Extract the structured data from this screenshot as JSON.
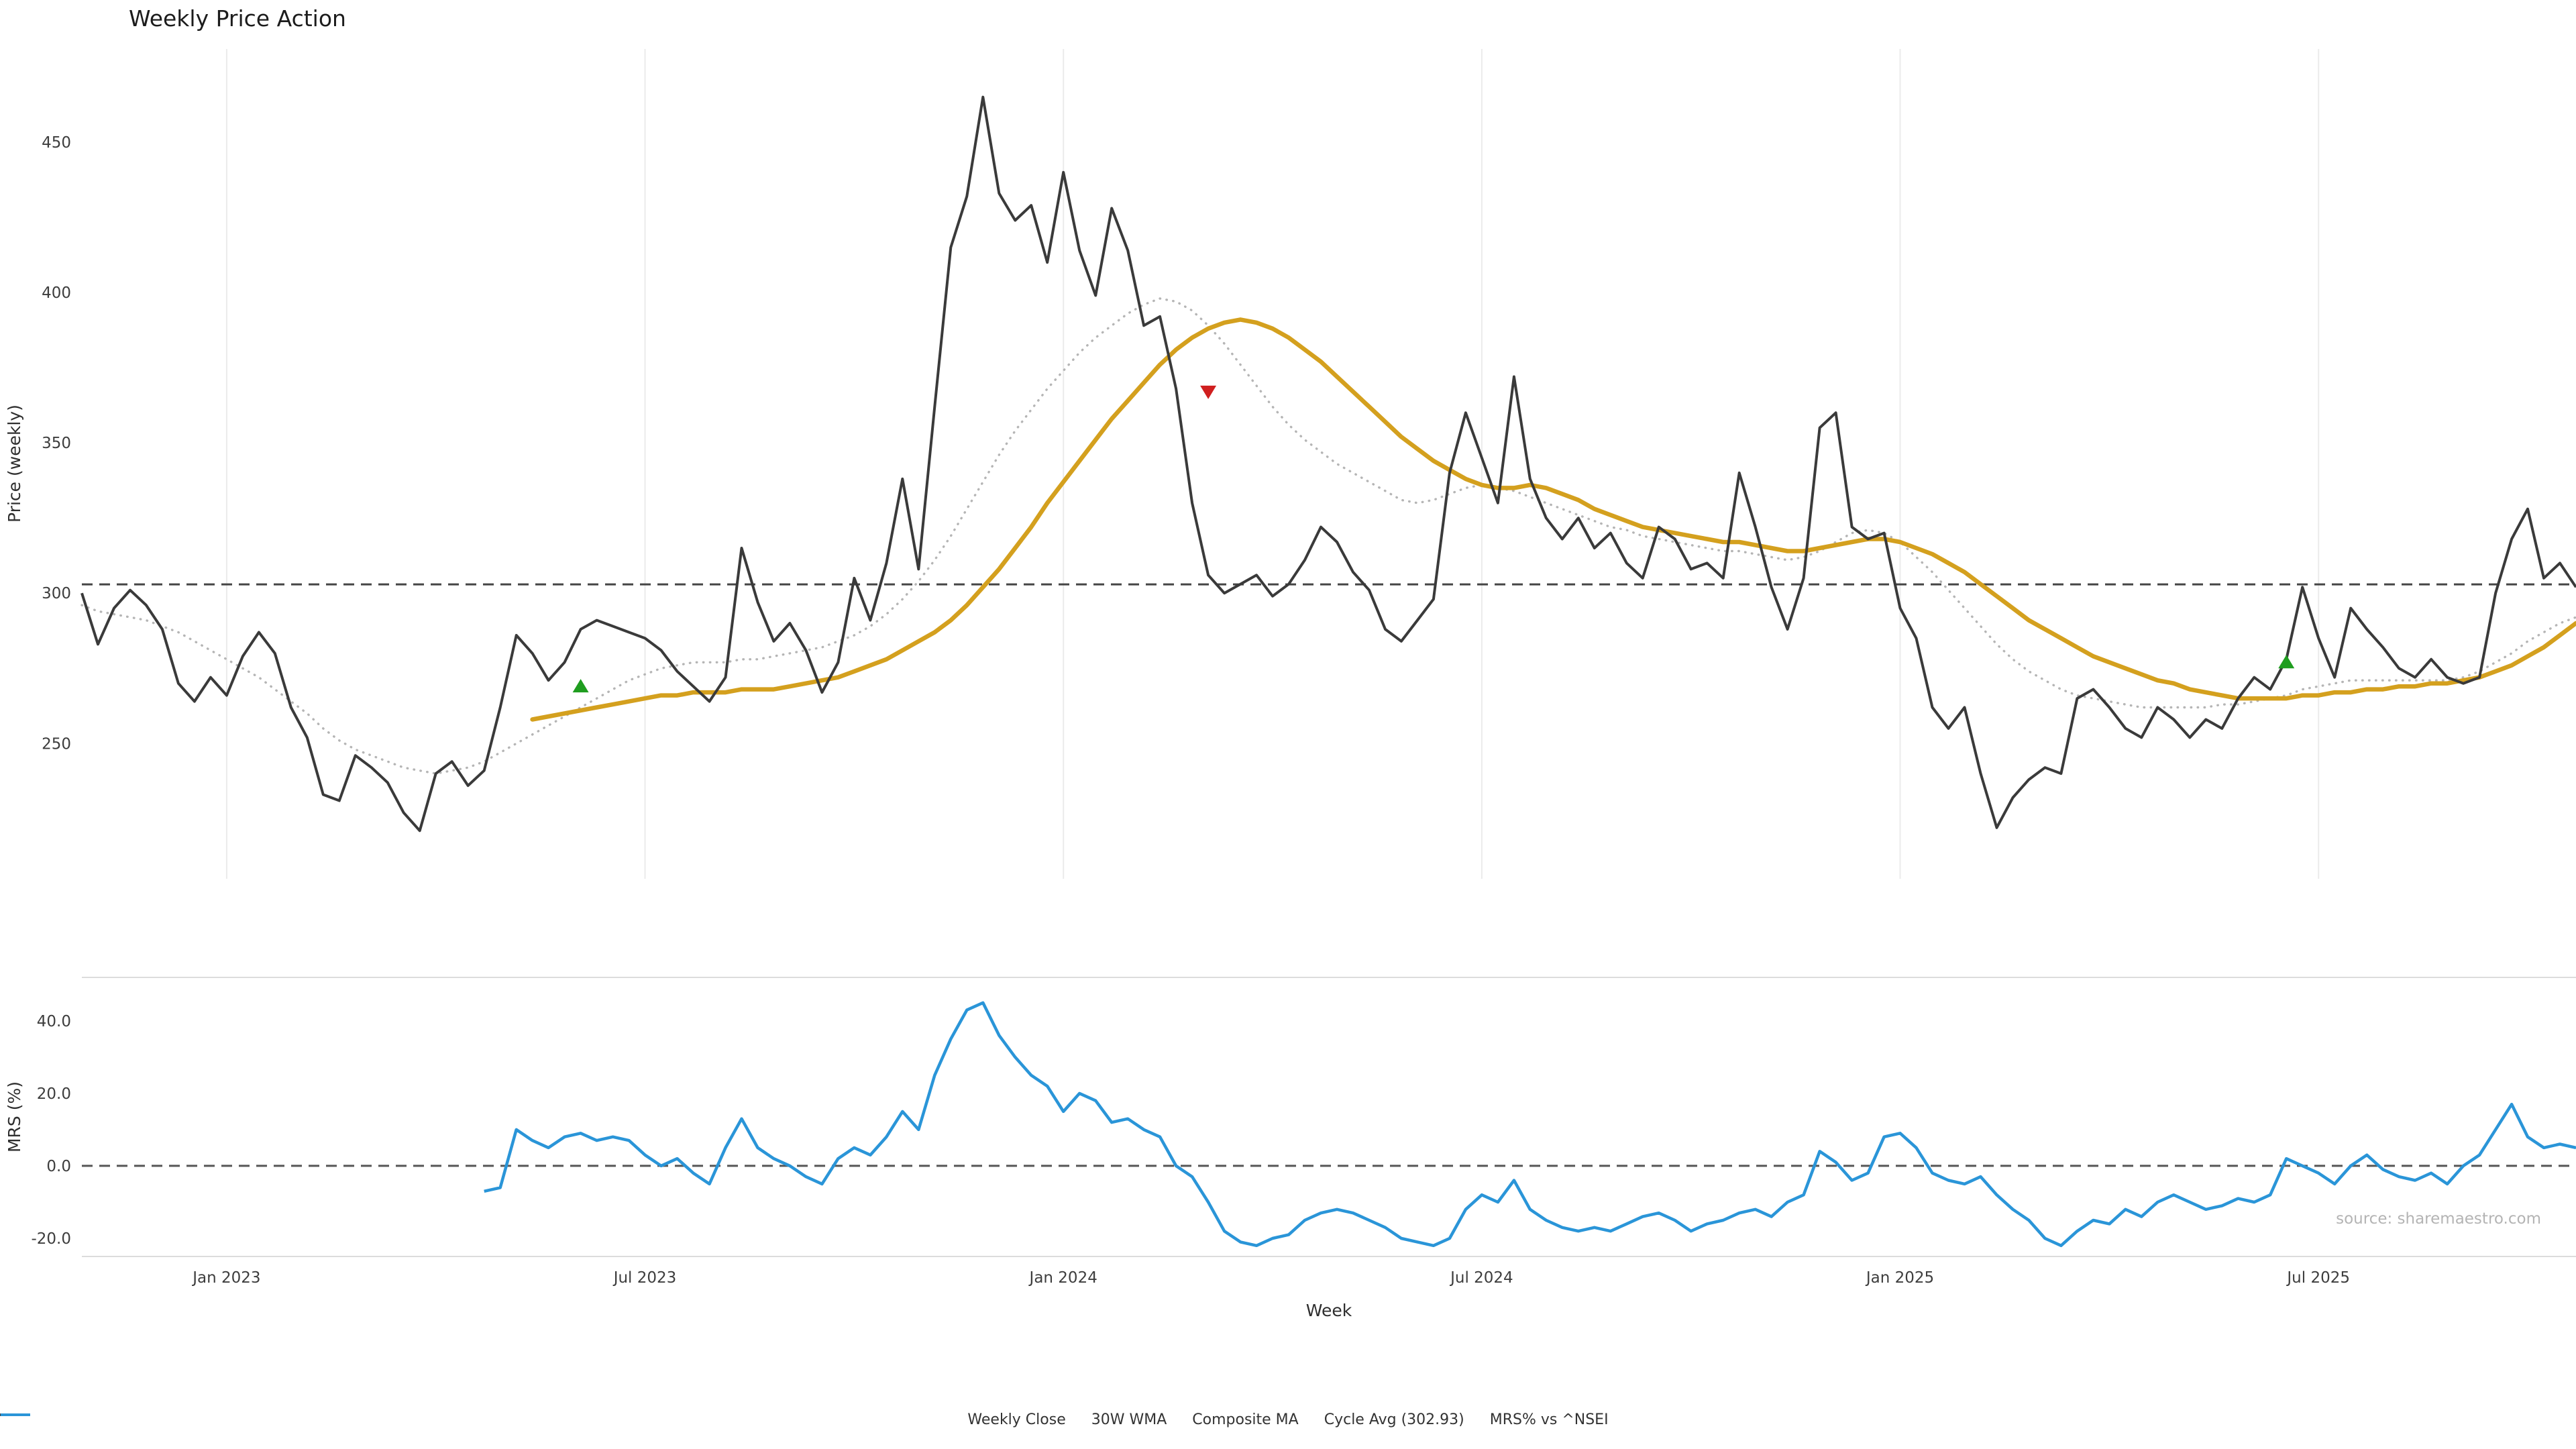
{
  "title": "Weekly Price Action",
  "source": "source: sharemaestro.com",
  "colors": {
    "weekly_close": "#3a3a3a",
    "wma": "#d4a01e",
    "composite": "#b5b5b5",
    "cycle_avg": "#444444",
    "mrs": "#2a95d8",
    "buy_marker": "#1f9d1f",
    "sell_marker": "#d01f1f",
    "gridline": "#ebebeb",
    "spine": "#dcdcdc"
  },
  "legend": {
    "items": [
      {
        "label": "Weekly Close",
        "color": "#3a3a3a",
        "style": "solid"
      },
      {
        "label": "30W WMA",
        "color": "#d4a01e",
        "style": "solid"
      },
      {
        "label": "Composite MA",
        "color": "#b5b5b5",
        "style": "dotted"
      },
      {
        "label": "Cycle Avg (302.93)",
        "color": "#444444",
        "style": "dashed"
      },
      {
        "label": "MRS% vs ^NSEI",
        "color": "#2a95d8",
        "style": "solid"
      }
    ]
  },
  "chart_data": [
    {
      "type": "line",
      "title": "Weekly Price Action",
      "xlabel": "Week",
      "ylabel": "Price (weekly)",
      "x_unit": "week_index",
      "weeks_total": 156,
      "x_ticks": [
        {
          "i": 9,
          "label": "Jan 2023"
        },
        {
          "i": 35,
          "label": "Jul 2023"
        },
        {
          "i": 61,
          "label": "Jan 2024"
        },
        {
          "i": 87,
          "label": "Jul 2024"
        },
        {
          "i": 113,
          "label": "Jan 2025"
        },
        {
          "i": 139,
          "label": "Jul 2025"
        }
      ],
      "y_ticks": [
        {
          "v": 250,
          "label": "250"
        },
        {
          "v": 300,
          "label": "300"
        },
        {
          "v": 350,
          "label": "350"
        },
        {
          "v": 400,
          "label": "400"
        },
        {
          "v": 450,
          "label": "450"
        }
      ],
      "ylim": [
        205,
        481
      ],
      "cycle_avg": 302.93,
      "grid": "vertical-only",
      "legend_position": "bottom-center",
      "series": [
        {
          "name": "Weekly Close",
          "style": "solid",
          "color": "#3a3a3a",
          "values": [
            300,
            283,
            295,
            301,
            296,
            288,
            270,
            264,
            272,
            266,
            279,
            287,
            280,
            262,
            252,
            233,
            231,
            246,
            242,
            237,
            227,
            221,
            240,
            244,
            236,
            241,
            262,
            286,
            280,
            271,
            277,
            288,
            291,
            289,
            287,
            285,
            281,
            274,
            269,
            264,
            272,
            315,
            297,
            284,
            290,
            281,
            267,
            277,
            305,
            291,
            310,
            338,
            308,
            362,
            415,
            432,
            465,
            433,
            424,
            429,
            410,
            440,
            414,
            399,
            428,
            414,
            389,
            392,
            368,
            330,
            306,
            300,
            303,
            306,
            299,
            303,
            311,
            322,
            317,
            307,
            301,
            288,
            284,
            291,
            298,
            340,
            360,
            345,
            330,
            372,
            338,
            325,
            318,
            325,
            315,
            320,
            310,
            305,
            322,
            318,
            308,
            310,
            305,
            340,
            322,
            302,
            288,
            305,
            355,
            360,
            322,
            318,
            320,
            295,
            285,
            262,
            255,
            262,
            240,
            222,
            232,
            238,
            242,
            240,
            265,
            268,
            262,
            255,
            252,
            262,
            258,
            252,
            258,
            255,
            265,
            272,
            268,
            278,
            302,
            285,
            272,
            295,
            288,
            282,
            275,
            272,
            278,
            272,
            270,
            272,
            300,
            318,
            328,
            305,
            310,
            302
          ]
        },
        {
          "name": "30W WMA",
          "style": "solid",
          "color": "#d4a01e",
          "values": [
            null,
            null,
            null,
            null,
            null,
            null,
            null,
            null,
            null,
            null,
            null,
            null,
            null,
            null,
            null,
            null,
            null,
            null,
            null,
            null,
            null,
            null,
            null,
            null,
            null,
            null,
            null,
            null,
            258,
            259,
            260,
            261,
            262,
            263,
            264,
            265,
            266,
            266,
            267,
            267,
            267,
            268,
            268,
            268,
            269,
            270,
            271,
            272,
            274,
            276,
            278,
            281,
            284,
            287,
            291,
            296,
            302,
            308,
            315,
            322,
            330,
            337,
            344,
            351,
            358,
            364,
            370,
            376,
            381,
            385,
            388,
            390,
            391,
            390,
            388,
            385,
            381,
            377,
            372,
            367,
            362,
            357,
            352,
            348,
            344,
            341,
            338,
            336,
            335,
            335,
            336,
            335,
            333,
            331,
            328,
            326,
            324,
            322,
            321,
            320,
            319,
            318,
            317,
            317,
            316,
            315,
            314,
            314,
            315,
            316,
            317,
            318,
            318,
            317,
            315,
            313,
            310,
            307,
            303,
            299,
            295,
            291,
            288,
            285,
            282,
            279,
            277,
            275,
            273,
            271,
            270,
            268,
            267,
            266,
            265,
            265,
            265,
            265,
            266,
            266,
            267,
            267,
            268,
            268,
            269,
            269,
            270,
            270,
            271,
            272,
            274,
            276,
            279,
            282,
            286,
            290
          ]
        },
        {
          "name": "Composite MA",
          "style": "dotted",
          "color": "#b5b5b5",
          "values": [
            296,
            294,
            293,
            292,
            291,
            289,
            287,
            284,
            281,
            278,
            275,
            272,
            268,
            264,
            260,
            255,
            251,
            248,
            246,
            244,
            242,
            241,
            240,
            241,
            242,
            244,
            247,
            250,
            253,
            256,
            259,
            262,
            265,
            268,
            271,
            273,
            275,
            276,
            277,
            277,
            277,
            278,
            278,
            279,
            280,
            281,
            282,
            284,
            286,
            289,
            293,
            298,
            304,
            311,
            319,
            328,
            337,
            346,
            354,
            361,
            368,
            374,
            380,
            385,
            389,
            393,
            396,
            398,
            397,
            394,
            389,
            383,
            376,
            369,
            362,
            356,
            351,
            347,
            343,
            340,
            337,
            334,
            331,
            330,
            331,
            333,
            335,
            336,
            335,
            334,
            332,
            330,
            328,
            326,
            324,
            322,
            321,
            319,
            318,
            317,
            316,
            315,
            314,
            314,
            313,
            312,
            311,
            312,
            314,
            317,
            320,
            321,
            320,
            317,
            312,
            307,
            301,
            295,
            289,
            283,
            278,
            274,
            271,
            268,
            266,
            265,
            264,
            263,
            262,
            262,
            262,
            262,
            262,
            263,
            263,
            264,
            265,
            266,
            268,
            269,
            270,
            271,
            271,
            271,
            271,
            271,
            271,
            271,
            272,
            274,
            277,
            280,
            284,
            287,
            290,
            292
          ]
        },
        {
          "name": "Cycle Avg (302.93)",
          "style": "dashed",
          "color": "#444444",
          "constant": 302.93
        }
      ],
      "signals": {
        "buy": [
          {
            "week_index": 31,
            "price": 269
          },
          {
            "week_index": 137,
            "price": 277
          }
        ],
        "sell": [
          {
            "week_index": 70,
            "price": 367
          }
        ]
      }
    },
    {
      "type": "line",
      "xlabel": "Week",
      "ylabel": "MRS (%)",
      "x_unit": "week_index",
      "weeks_total": 156,
      "y_ticks": [
        {
          "v": -20,
          "label": "-20.0"
        },
        {
          "v": 0,
          "label": "0.0"
        },
        {
          "v": 20,
          "label": "20.0"
        },
        {
          "v": 40,
          "label": "40.0"
        }
      ],
      "ylim": [
        -25,
        52
      ],
      "zero_line": 0,
      "series": [
        {
          "name": "MRS% vs ^NSEI",
          "style": "solid",
          "color": "#2a95d8",
          "values": [
            null,
            null,
            null,
            null,
            null,
            null,
            null,
            null,
            null,
            null,
            null,
            null,
            null,
            null,
            null,
            null,
            null,
            null,
            null,
            null,
            null,
            null,
            null,
            null,
            null,
            -7,
            -6,
            10,
            7,
            5,
            8,
            9,
            7,
            8,
            7,
            3,
            0,
            2,
            -2,
            -5,
            5,
            13,
            5,
            2,
            0,
            -3,
            -5,
            2,
            5,
            3,
            8,
            15,
            10,
            25,
            35,
            43,
            45,
            36,
            30,
            25,
            22,
            15,
            20,
            18,
            12,
            13,
            10,
            8,
            0,
            -3,
            -10,
            -18,
            -21,
            -22,
            -20,
            -19,
            -15,
            -13,
            -12,
            -13,
            -15,
            -17,
            -20,
            -21,
            -22,
            -20,
            -12,
            -8,
            -10,
            -4,
            -12,
            -15,
            -17,
            -18,
            -17,
            -18,
            -16,
            -14,
            -13,
            -15,
            -18,
            -16,
            -15,
            -13,
            -12,
            -14,
            -10,
            -8,
            4,
            1,
            -4,
            -2,
            8,
            9,
            5,
            -2,
            -4,
            -5,
            -3,
            -8,
            -12,
            -15,
            -20,
            -22,
            -18,
            -15,
            -16,
            -12,
            -14,
            -10,
            -8,
            -10,
            -12,
            -11,
            -9,
            -10,
            -8,
            2,
            0,
            -2,
            -5,
            0,
            3,
            -1,
            -3,
            -4,
            -2,
            -5,
            0,
            3,
            10,
            17,
            8,
            5,
            6,
            5
          ]
        }
      ]
    }
  ]
}
